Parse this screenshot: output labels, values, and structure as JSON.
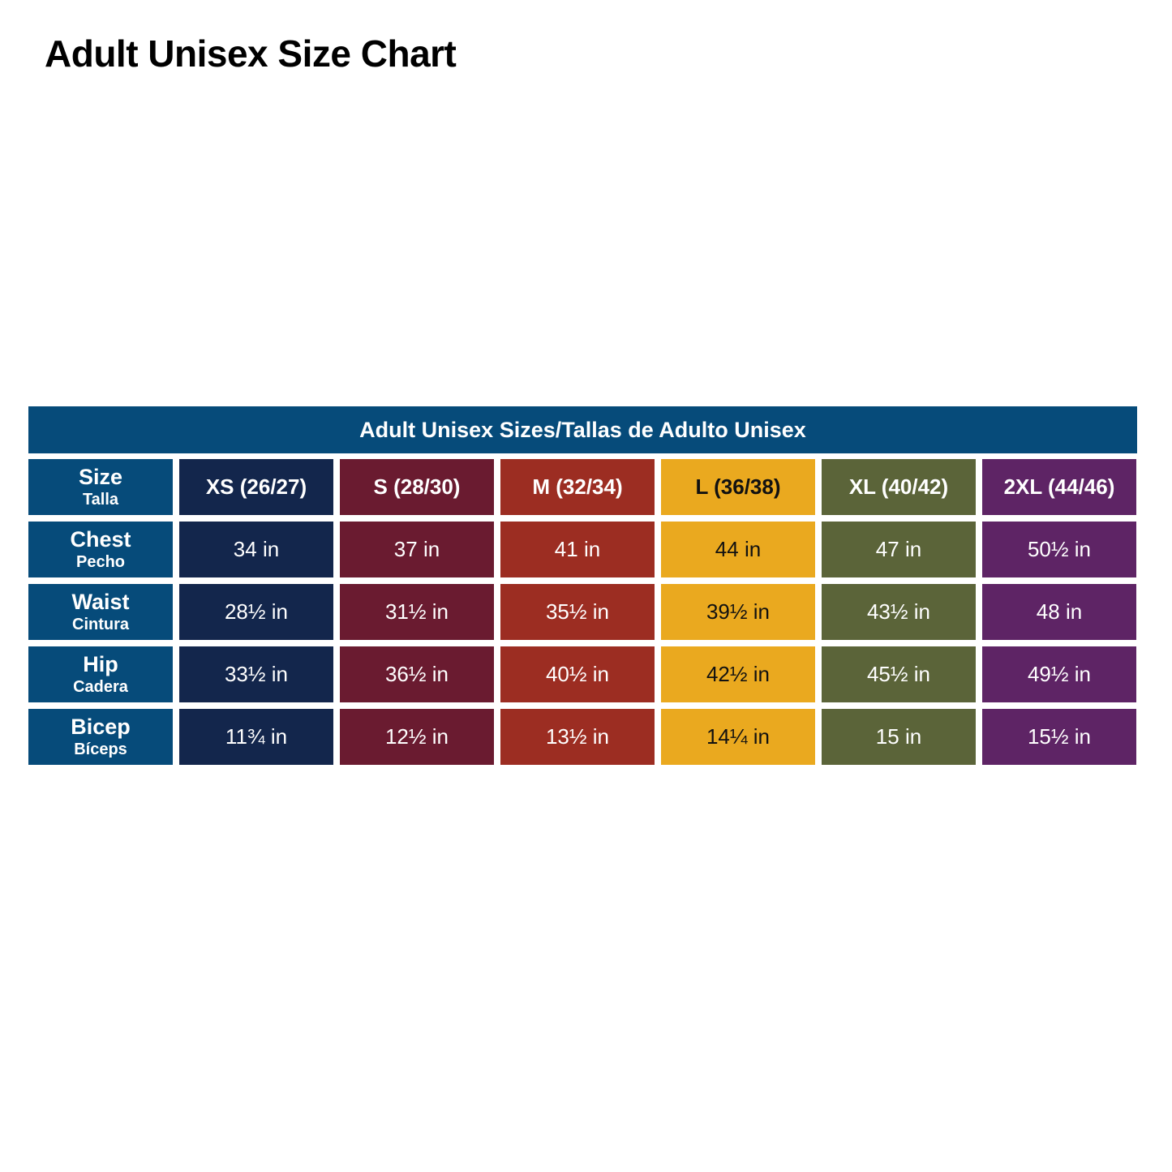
{
  "title": "Adult Unisex Size Chart",
  "table": {
    "banner": "Adult Unisex Sizes/Tallas de Adulto Unisex",
    "row_header": {
      "label": "Size",
      "sublabel": "Talla"
    },
    "sizes": [
      {
        "label": "XS (26/27)",
        "color": "#13264c",
        "text_color": "#ffffff"
      },
      {
        "label": "S (28/30)",
        "color": "#6a1b30",
        "text_color": "#ffffff"
      },
      {
        "label": "M (32/34)",
        "color": "#9c2d22",
        "text_color": "#ffffff"
      },
      {
        "label": "L (36/38)",
        "color": "#eaa91f",
        "text_color": "#111111"
      },
      {
        "label": "XL (40/42)",
        "color": "#5b6439",
        "text_color": "#ffffff"
      },
      {
        "label": "2XL (44/46)",
        "color": "#5e2465",
        "text_color": "#ffffff"
      }
    ],
    "rows": [
      {
        "label": "Chest",
        "sublabel": "Pecho",
        "values": [
          "34 in",
          "37 in",
          "41 in",
          "44 in",
          "47 in",
          "50½ in"
        ]
      },
      {
        "label": "Waist",
        "sublabel": "Cintura",
        "values": [
          "28½ in",
          "31½ in",
          "35½ in",
          "39½ in",
          "43½ in",
          "48 in"
        ]
      },
      {
        "label": "Hip",
        "sublabel": "Cadera",
        "values": [
          "33½ in",
          "36½ in",
          "40½ in",
          "42½ in",
          "45½ in",
          "49½ in"
        ]
      },
      {
        "label": "Bicep",
        "sublabel": "Bíceps",
        "values": [
          "11¾ in",
          "12½ in",
          "13½ in",
          "14¼ in",
          "15 in",
          "15½ in"
        ]
      }
    ],
    "header_color": "#064b7a"
  }
}
